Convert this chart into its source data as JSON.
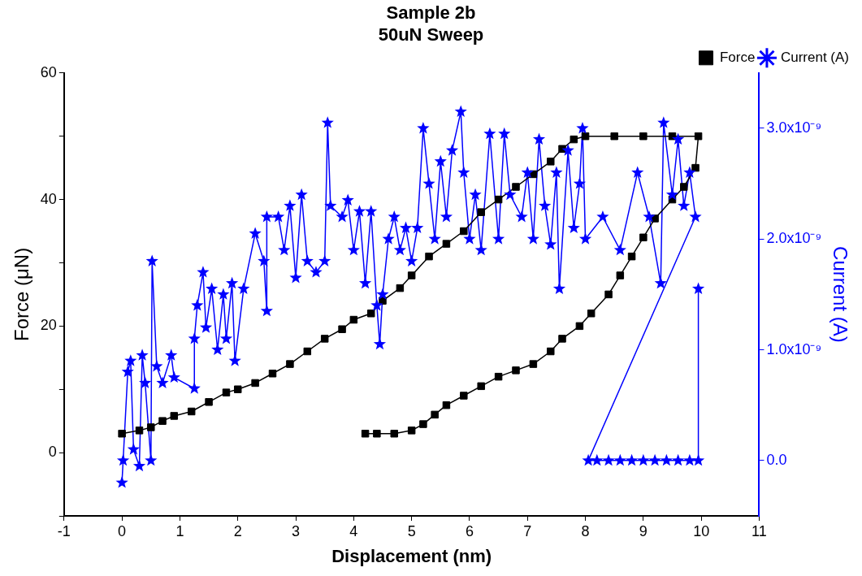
{
  "chart_data": {
    "type": "line",
    "title": [
      "Sample 2b",
      "50uN Sweep"
    ],
    "xlabel": "Displacement (nm)",
    "ylabel": "Force (μN)",
    "y2label": "Current (A)",
    "xlim": [
      -1,
      11
    ],
    "xticks": [
      -1,
      0,
      1,
      2,
      3,
      4,
      5,
      6,
      7,
      8,
      9,
      10,
      11
    ],
    "ylim": [
      -10,
      60
    ],
    "yticks": [
      {
        "value": -10,
        "label": null
      },
      0,
      {
        "value": 10,
        "label": null
      },
      20,
      {
        "value": 30,
        "label": null
      },
      40,
      {
        "value": 50,
        "label": null
      },
      60
    ],
    "y2lim": [
      -5e-10,
      3.5e-09
    ],
    "y2ticks": [
      {
        "value": 0,
        "label": "0.0"
      },
      {
        "value": 1e-09,
        "label": "1.0x10⁻⁹"
      },
      {
        "value": 2e-09,
        "label": "2.0x10⁻⁹"
      },
      {
        "value": 3e-09,
        "label": "3.0x10⁻⁹"
      }
    ],
    "grid": false,
    "legend": "top right",
    "line_style": "solid",
    "series": [
      {
        "name": "Force",
        "color": "#000000",
        "marker": "square",
        "x": [
          0,
          0.3,
          0.5,
          0.7,
          0.9,
          1.2,
          1.5,
          1.8,
          2,
          2.3,
          2.6,
          2.9,
          3.2,
          3.5,
          3.8,
          4,
          4.3,
          4.5,
          4.8,
          5,
          5.3,
          5.6,
          5.9,
          6.2,
          6.5,
          6.8,
          7.1,
          7.4,
          7.6,
          7.8,
          8,
          8.5,
          9,
          9.5,
          9.95,
          9.9,
          9.7,
          9.5,
          9.2,
          9,
          8.8,
          8.6,
          8.4,
          8.1,
          7.9,
          7.6,
          7.4,
          7.1,
          6.8,
          6.5,
          6.2,
          5.9,
          5.6,
          5.4,
          5.2,
          5,
          4.7,
          4.4,
          4.2
        ],
        "values": [
          3,
          3.5,
          4,
          5,
          5.8,
          6.5,
          8,
          9.5,
          10,
          11,
          12.5,
          14,
          16,
          18,
          19.5,
          21,
          22,
          24,
          26,
          28,
          31,
          33,
          35,
          38,
          40,
          42,
          44,
          46,
          48,
          49.5,
          50,
          50,
          50,
          50,
          50,
          45,
          42,
          40,
          37,
          34,
          31,
          28,
          25,
          22,
          20,
          18,
          16,
          14,
          13,
          12,
          10.5,
          9,
          7.5,
          6,
          4.5,
          3.5,
          3,
          3,
          3
        ]
      },
      {
        "name": "Current (A)",
        "color": "#0000ff",
        "marker": "star",
        "axis": "y2",
        "x": [
          0,
          0.02,
          0.1,
          0.15,
          0.2,
          0.3,
          0.35,
          0.4,
          0.5,
          0.52,
          0.6,
          0.7,
          0.85,
          0.9,
          1.25,
          1.25,
          1.3,
          1.4,
          1.45,
          1.55,
          1.65,
          1.75,
          1.8,
          1.9,
          1.95,
          2.1,
          2.3,
          2.45,
          2.5,
          2.5,
          2.7,
          2.8,
          2.9,
          3,
          3.1,
          3.2,
          3.35,
          3.5,
          3.55,
          3.6,
          3.8,
          3.9,
          4,
          4.1,
          4.2,
          4.3,
          4.4,
          4.45,
          4.5,
          4.6,
          4.7,
          4.8,
          4.9,
          5,
          5.1,
          5.2,
          5.3,
          5.4,
          5.5,
          5.6,
          5.7,
          5.85,
          5.9,
          6,
          6.1,
          6.2,
          6.35,
          6.5,
          6.6,
          6.7,
          6.9,
          7,
          7.1,
          7.2,
          7.3,
          7.4,
          7.5,
          7.55,
          7.7,
          7.8,
          7.9,
          7.95,
          8,
          8.3,
          8.6,
          8.9,
          9.1,
          9.3,
          9.35,
          9.5,
          9.6,
          9.7,
          9.8,
          9.9,
          8.05,
          8.2,
          8.4,
          8.6,
          8.8,
          9,
          9.2,
          9.4,
          9.6,
          9.8,
          9.95,
          9.95
        ],
        "values": [
          -2e-10,
          0,
          8e-10,
          9e-10,
          1e-10,
          -5e-11,
          9.5e-10,
          7e-10,
          0,
          1.8e-09,
          8.5e-10,
          7e-10,
          9.5e-10,
          7.5e-10,
          6.5e-10,
          1.1e-09,
          1.4e-09,
          1.7e-09,
          1.2e-09,
          1.55e-09,
          1e-09,
          1.5e-09,
          1.1e-09,
          1.6e-09,
          9e-10,
          1.55e-09,
          2.05e-09,
          1.8e-09,
          1.35e-09,
          2.2e-09,
          2.2e-09,
          1.9e-09,
          2.3e-09,
          1.65e-09,
          2.4e-09,
          1.8e-09,
          1.7e-09,
          1.8e-09,
          3.05e-09,
          2.3e-09,
          2.2e-09,
          2.35e-09,
          1.9e-09,
          2.25e-09,
          1.6e-09,
          2.25e-09,
          1.4e-09,
          1.05e-09,
          1.5e-09,
          2e-09,
          2.2e-09,
          1.9e-09,
          2.1e-09,
          1.8e-09,
          2.1e-09,
          3e-09,
          2.5e-09,
          2e-09,
          2.7e-09,
          2.2e-09,
          2.8e-09,
          3.15e-09,
          2.6e-09,
          2e-09,
          2.4e-09,
          1.9e-09,
          2.95e-09,
          2e-09,
          2.95e-09,
          2.4e-09,
          2.2e-09,
          2.6e-09,
          2e-09,
          2.9e-09,
          2.3e-09,
          1.95e-09,
          2.6e-09,
          1.55e-09,
          2.8e-09,
          2.1e-09,
          2.5e-09,
          3e-09,
          2e-09,
          2.2e-09,
          1.9e-09,
          2.6e-09,
          2.2e-09,
          1.6e-09,
          3.05e-09,
          2.4e-09,
          2.9e-09,
          2.3e-09,
          2.6e-09,
          2.2e-09,
          0,
          0,
          0,
          0,
          0,
          0,
          0,
          0,
          0,
          0,
          0,
          1.55e-09
        ]
      }
    ]
  }
}
